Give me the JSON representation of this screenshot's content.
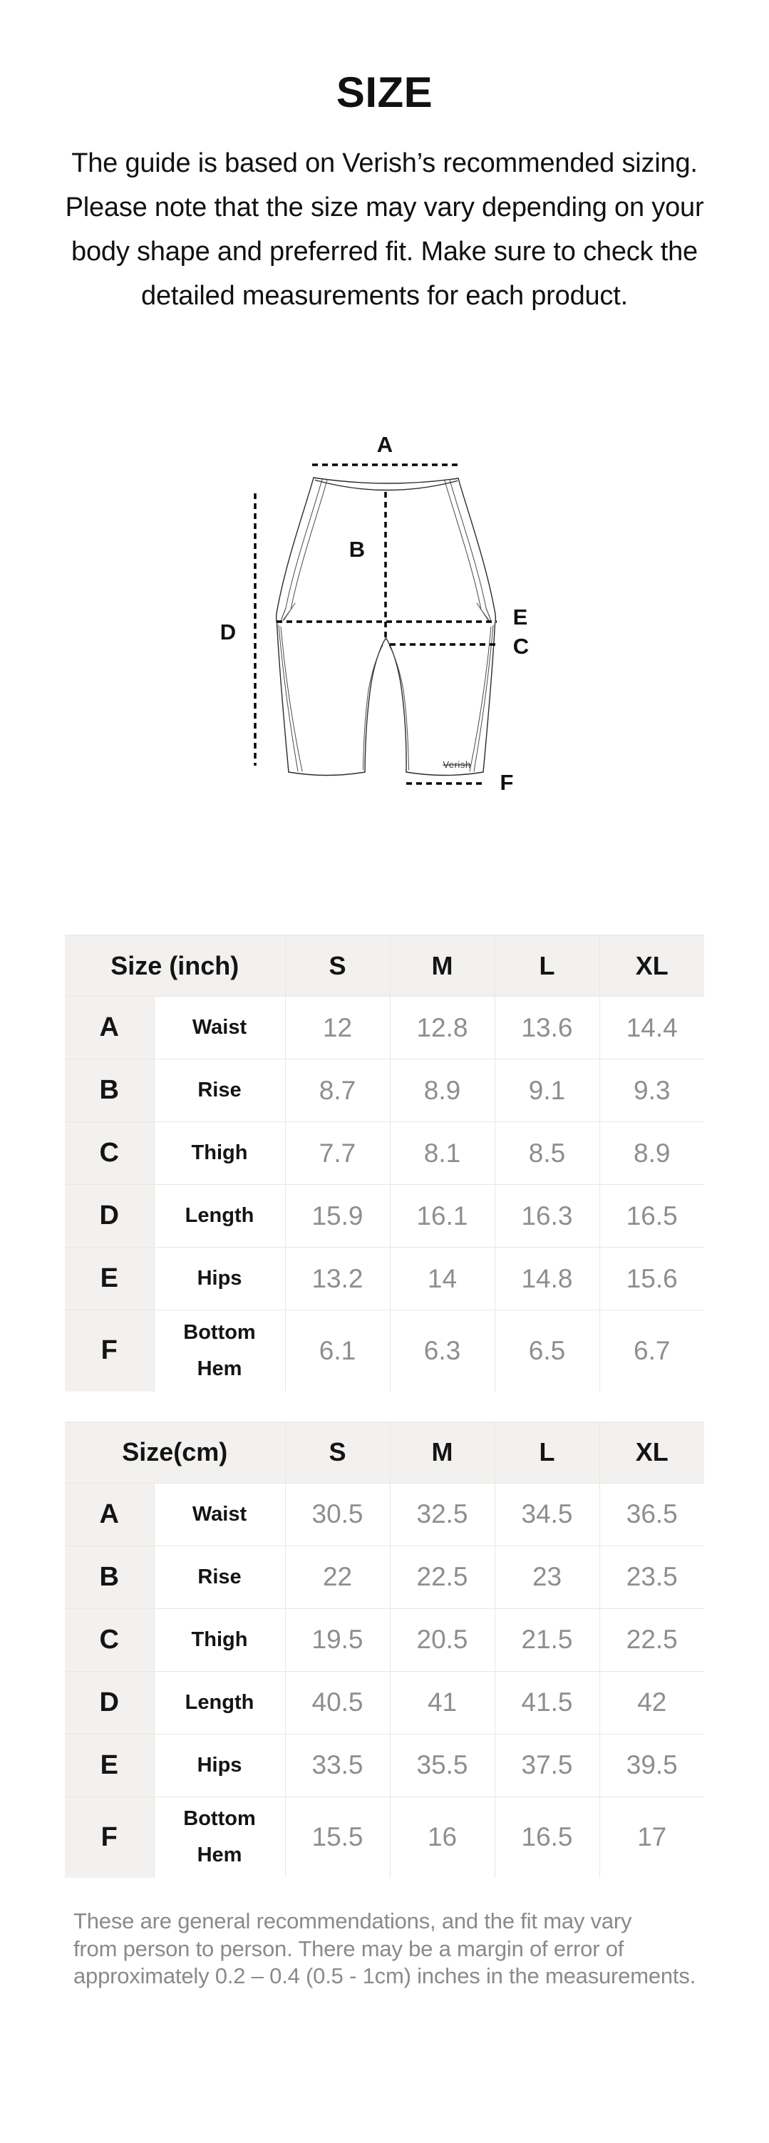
{
  "page": {
    "title": "SIZE"
  },
  "intro": {
    "lines": [
      "The guide is based on Verish’s recommended sizing.",
      "Please note that the size may vary depending on your",
      "body shape and preferred fit. Make sure to check the",
      "detailed measurements for each product."
    ]
  },
  "diagram": {
    "a": "A",
    "b": "B",
    "c": "C",
    "d": "D",
    "e": "E",
    "f": "F",
    "brand": "Verish"
  },
  "tables": [
    {
      "unit_header": "Size (inch)",
      "size_columns": [
        "S",
        "M",
        "L",
        "XL"
      ],
      "rows": [
        {
          "key": "A",
          "label": "Waist",
          "values": [
            "12",
            "12.8",
            "13.6",
            "14.4"
          ]
        },
        {
          "key": "B",
          "label": "Rise",
          "values": [
            "8.7",
            "8.9",
            "9.1",
            "9.3"
          ]
        },
        {
          "key": "C",
          "label": "Thigh",
          "values": [
            "7.7",
            "8.1",
            "8.5",
            "8.9"
          ]
        },
        {
          "key": "D",
          "label": "Length",
          "values": [
            "15.9",
            "16.1",
            "16.3",
            "16.5"
          ]
        },
        {
          "key": "E",
          "label": "Hips",
          "values": [
            "13.2",
            "14",
            "14.8",
            "15.6"
          ]
        },
        {
          "key": "F",
          "label": "Bottom\nHem",
          "values": [
            "6.1",
            "6.3",
            "6.5",
            "6.7"
          ]
        }
      ]
    },
    {
      "unit_header": "Size(cm)",
      "size_columns": [
        "S",
        "M",
        "L",
        "XL"
      ],
      "rows": [
        {
          "key": "A",
          "label": "Waist",
          "values": [
            "30.5",
            "32.5",
            "34.5",
            "36.5"
          ]
        },
        {
          "key": "B",
          "label": "Rise",
          "values": [
            "22",
            "22.5",
            "23",
            "23.5"
          ]
        },
        {
          "key": "C",
          "label": "Thigh",
          "values": [
            "19.5",
            "20.5",
            "21.5",
            "22.5"
          ]
        },
        {
          "key": "D",
          "label": "Length",
          "values": [
            "40.5",
            "41",
            "41.5",
            "42"
          ]
        },
        {
          "key": "E",
          "label": "Hips",
          "values": [
            "33.5",
            "35.5",
            "37.5",
            "39.5"
          ]
        },
        {
          "key": "F",
          "label": "Bottom\nHem",
          "values": [
            "15.5",
            "16",
            "16.5",
            "17"
          ]
        }
      ]
    }
  ],
  "footnote": {
    "lines": [
      "These are general recommendations, and the fit may vary",
      "from person to person. There may be a margin of error of",
      "approximately 0.2 – 0.4 (0.5 - 1cm) inches in the measurements."
    ]
  },
  "colors": {
    "table_header_bg": "#f2f1ef",
    "table_border": "#e8e7e4",
    "value_text": "#8e8e8e",
    "body_text": "#141414",
    "footnote_text": "#8a8a8a",
    "background": "#ffffff"
  }
}
